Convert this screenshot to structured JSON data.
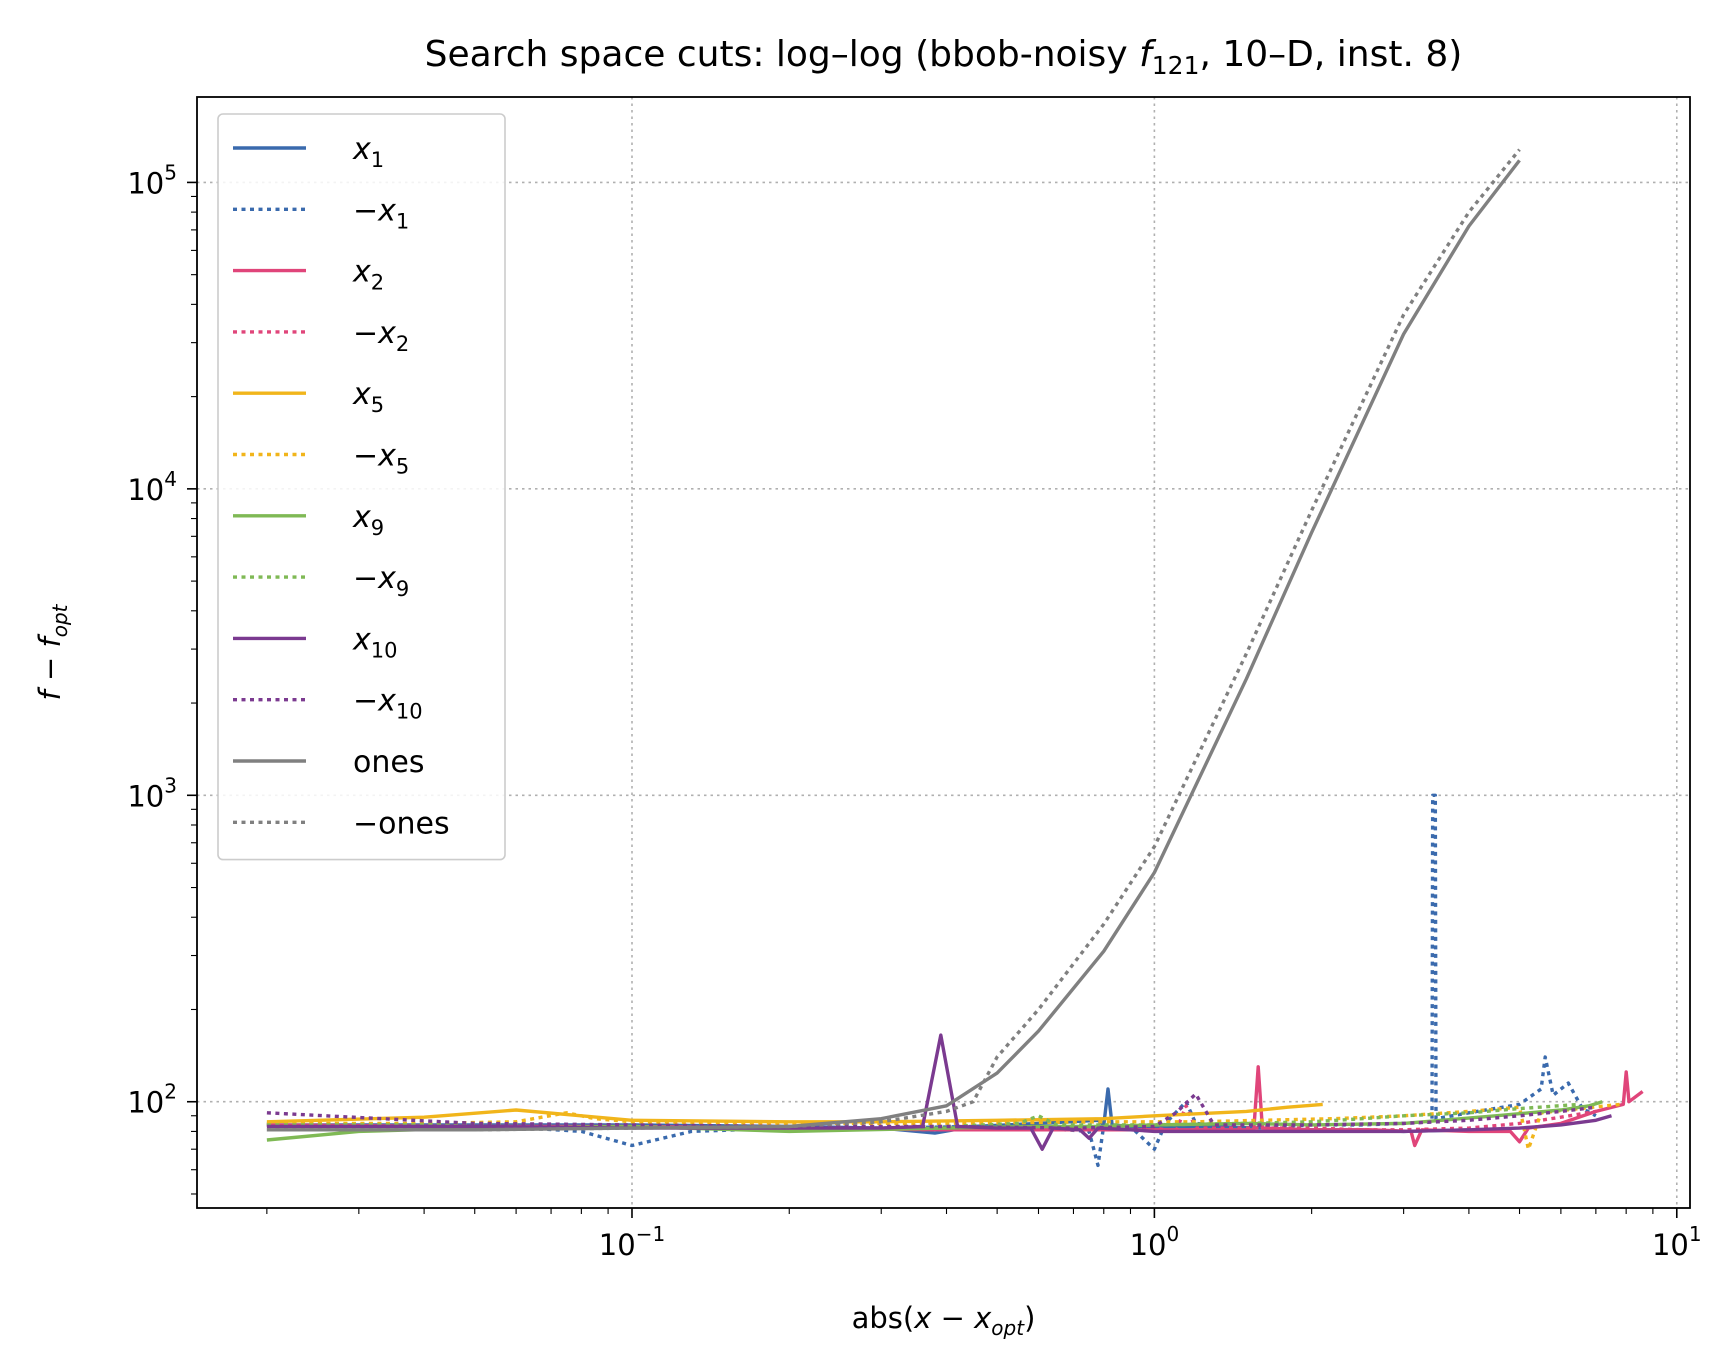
{
  "chart_data": {
    "type": "line",
    "title_parts": [
      "Search space cuts: log–log (bbob-noisy ",
      "f",
      "121",
      ", 10–D, inst. 8)"
    ],
    "xlabel_parts": [
      "abs(",
      "x",
      " − ",
      "x",
      "opt",
      ")"
    ],
    "ylabel_parts": [
      "f",
      " − ",
      "f",
      "opt"
    ],
    "xscale": "log",
    "yscale": "log",
    "xlim": [
      0.0147,
      10.6
    ],
    "ylim": [
      45,
      190000
    ],
    "grid": true,
    "legend_position": "upper-left",
    "x_ticks": [
      {
        "value": 0.1,
        "base": "10",
        "exp": "−1"
      },
      {
        "value": 1,
        "base": "10",
        "exp": "0"
      },
      {
        "value": 10,
        "base": "10",
        "exp": "1"
      }
    ],
    "y_ticks": [
      {
        "value": 100,
        "base": "10",
        "exp": "2"
      },
      {
        "value": 1000,
        "base": "10",
        "exp": "3"
      },
      {
        "value": 10000,
        "base": "10",
        "exp": "4"
      },
      {
        "value": 100000,
        "base": "10",
        "exp": "5"
      }
    ],
    "series": [
      {
        "id": "x1",
        "label_parts": [
          "",
          "x",
          "1"
        ],
        "color": "#3a6aad",
        "dash": "solid",
        "points": [
          [
            0.02,
            84
          ],
          [
            0.05,
            84
          ],
          [
            0.1,
            84
          ],
          [
            0.2,
            83
          ],
          [
            0.3,
            82
          ],
          [
            0.38,
            79
          ],
          [
            0.45,
            83
          ],
          [
            0.6,
            85
          ],
          [
            0.78,
            87
          ],
          [
            0.8,
            84
          ],
          [
            0.815,
            110
          ],
          [
            0.83,
            84
          ],
          [
            0.9,
            83
          ],
          [
            1.0,
            82
          ],
          [
            1.2,
            83
          ],
          [
            1.6,
            82
          ],
          [
            2.0,
            81
          ],
          [
            2.5,
            81
          ],
          [
            3.0,
            80
          ],
          [
            4.0,
            81
          ]
        ]
      },
      {
        "id": "mx1",
        "label_parts": [
          "−",
          "x",
          "1"
        ],
        "color": "#3a6aad",
        "dash": "dotted",
        "points": [
          [
            0.02,
            85
          ],
          [
            0.05,
            84
          ],
          [
            0.08,
            80
          ],
          [
            0.1,
            72
          ],
          [
            0.13,
            80
          ],
          [
            0.2,
            82
          ],
          [
            0.3,
            82
          ],
          [
            0.45,
            83
          ],
          [
            0.6,
            82
          ],
          [
            0.75,
            80
          ],
          [
            0.78,
            62
          ],
          [
            0.8,
            84
          ],
          [
            0.9,
            83
          ],
          [
            1.0,
            70
          ],
          [
            1.05,
            85
          ],
          [
            1.15,
            100
          ],
          [
            1.2,
            85
          ],
          [
            1.5,
            82
          ],
          [
            2.0,
            84
          ],
          [
            2.5,
            84
          ],
          [
            3.0,
            85
          ],
          [
            3.4,
            86
          ],
          [
            3.41,
            1000
          ],
          [
            3.45,
            1000
          ],
          [
            3.46,
            88
          ],
          [
            4.0,
            92
          ],
          [
            5.0,
            98
          ],
          [
            5.5,
            110
          ],
          [
            5.6,
            140
          ],
          [
            5.8,
            105
          ],
          [
            6.2,
            115
          ],
          [
            6.6,
            95
          ],
          [
            7.0,
            90
          ]
        ]
      },
      {
        "id": "x2",
        "label_parts": [
          "",
          "x",
          "2"
        ],
        "color": "#e0457a",
        "dash": "solid",
        "points": [
          [
            0.02,
            84
          ],
          [
            0.05,
            83
          ],
          [
            0.1,
            83
          ],
          [
            0.2,
            82
          ],
          [
            0.4,
            81
          ],
          [
            0.8,
            81
          ],
          [
            1.2,
            81
          ],
          [
            1.55,
            81
          ],
          [
            1.58,
            130
          ],
          [
            1.61,
            82
          ],
          [
            2.0,
            81
          ],
          [
            2.6,
            81
          ],
          [
            3.1,
            80
          ],
          [
            3.15,
            72
          ],
          [
            3.25,
            81
          ],
          [
            4.0,
            80
          ],
          [
            4.8,
            80
          ],
          [
            5.0,
            74
          ],
          [
            5.2,
            82
          ],
          [
            6.0,
            85
          ],
          [
            7.0,
            93
          ],
          [
            7.9,
            98
          ],
          [
            8.0,
            125
          ],
          [
            8.1,
            100
          ],
          [
            8.6,
            108
          ]
        ]
      },
      {
        "id": "mx2",
        "label_parts": [
          "−",
          "x",
          "2"
        ],
        "color": "#e0457a",
        "dash": "dotted",
        "points": [
          [
            0.02,
            84
          ],
          [
            0.05,
            83
          ],
          [
            0.1,
            83
          ],
          [
            0.2,
            82
          ],
          [
            0.4,
            81
          ],
          [
            0.8,
            82
          ],
          [
            1.0,
            82
          ],
          [
            1.1,
            80
          ],
          [
            1.15,
            97
          ],
          [
            1.2,
            82
          ],
          [
            1.6,
            82
          ],
          [
            2.0,
            82
          ],
          [
            2.5,
            81
          ],
          [
            3.0,
            81
          ],
          [
            4.0,
            82
          ],
          [
            5.0,
            85
          ],
          [
            6.0,
            89
          ],
          [
            7.0,
            93
          ]
        ]
      },
      {
        "id": "x5",
        "label_parts": [
          "",
          "x",
          "5"
        ],
        "color": "#f1b51b",
        "dash": "solid",
        "points": [
          [
            0.02,
            86
          ],
          [
            0.04,
            89
          ],
          [
            0.06,
            94
          ],
          [
            0.08,
            90
          ],
          [
            0.1,
            87
          ],
          [
            0.2,
            86
          ],
          [
            0.3,
            86
          ],
          [
            0.5,
            87
          ],
          [
            0.8,
            88
          ],
          [
            1.0,
            90
          ],
          [
            1.5,
            93
          ],
          [
            1.8,
            96
          ],
          [
            2.1,
            98
          ]
        ]
      },
      {
        "id": "mx5",
        "label_parts": [
          "−",
          "x",
          "5"
        ],
        "color": "#f1b51b",
        "dash": "dotted",
        "points": [
          [
            0.02,
            85
          ],
          [
            0.04,
            85
          ],
          [
            0.06,
            86
          ],
          [
            0.075,
            92
          ],
          [
            0.085,
            88
          ],
          [
            0.1,
            86
          ],
          [
            0.2,
            85
          ],
          [
            0.4,
            85
          ],
          [
            0.8,
            86
          ],
          [
            1.2,
            86
          ],
          [
            1.6,
            87
          ],
          [
            2.2,
            88
          ],
          [
            3.0,
            90
          ],
          [
            4.0,
            93
          ],
          [
            5.0,
            96
          ],
          [
            5.2,
            70
          ],
          [
            5.5,
            92
          ],
          [
            6.5,
            95
          ],
          [
            7.8,
            98
          ]
        ]
      },
      {
        "id": "x9",
        "label_parts": [
          "",
          "x",
          "9"
        ],
        "color": "#7fb955",
        "dash": "solid",
        "points": [
          [
            0.02,
            75
          ],
          [
            0.03,
            80
          ],
          [
            0.05,
            82
          ],
          [
            0.1,
            83
          ],
          [
            0.2,
            80
          ],
          [
            0.4,
            82
          ],
          [
            0.6,
            83
          ],
          [
            0.8,
            83
          ],
          [
            1.0,
            84
          ],
          [
            1.5,
            85
          ],
          [
            2.0,
            84
          ],
          [
            3.0,
            85
          ],
          [
            4.5,
            90
          ],
          [
            6.0,
            94
          ],
          [
            6.8,
            97
          ],
          [
            7.2,
            100
          ]
        ]
      },
      {
        "id": "mx9",
        "label_parts": [
          "−",
          "x",
          "9"
        ],
        "color": "#7fb955",
        "dash": "dotted",
        "points": [
          [
            0.02,
            84
          ],
          [
            0.05,
            84
          ],
          [
            0.1,
            83
          ],
          [
            0.2,
            82
          ],
          [
            0.4,
            83
          ],
          [
            0.55,
            85
          ],
          [
            0.6,
            90
          ],
          [
            0.65,
            84
          ],
          [
            0.8,
            84
          ],
          [
            1.0,
            84
          ],
          [
            1.5,
            85
          ],
          [
            2.0,
            86
          ],
          [
            2.5,
            88
          ],
          [
            3.0,
            90
          ],
          [
            4.0,
            92
          ],
          [
            5.0,
            95
          ],
          [
            6.5,
            98
          ]
        ]
      },
      {
        "id": "x10",
        "label_parts": [
          "",
          "x",
          "10"
        ],
        "color": "#7b3a90",
        "dash": "solid",
        "points": [
          [
            0.02,
            83
          ],
          [
            0.05,
            83
          ],
          [
            0.1,
            82
          ],
          [
            0.2,
            82
          ],
          [
            0.3,
            82
          ],
          [
            0.36,
            83
          ],
          [
            0.39,
            165
          ],
          [
            0.42,
            83
          ],
          [
            0.5,
            82
          ],
          [
            0.58,
            82
          ],
          [
            0.61,
            70
          ],
          [
            0.64,
            82
          ],
          [
            0.72,
            81
          ],
          [
            0.75,
            76
          ],
          [
            0.78,
            82
          ],
          [
            0.9,
            81
          ],
          [
            1.0,
            80
          ],
          [
            1.5,
            80
          ],
          [
            2.0,
            80
          ],
          [
            3.0,
            80
          ],
          [
            4.0,
            81
          ],
          [
            5.0,
            82
          ],
          [
            6.0,
            84
          ],
          [
            7.0,
            87
          ],
          [
            7.5,
            90
          ]
        ]
      },
      {
        "id": "mx10",
        "label_parts": [
          "−",
          "x",
          "10"
        ],
        "color": "#7b3a90",
        "dash": "dotted",
        "points": [
          [
            0.02,
            92
          ],
          [
            0.05,
            85
          ],
          [
            0.1,
            84
          ],
          [
            0.2,
            83
          ],
          [
            0.4,
            83
          ],
          [
            0.7,
            82
          ],
          [
            1.0,
            83
          ],
          [
            1.1,
            92
          ],
          [
            1.2,
            106
          ],
          [
            1.3,
            84
          ],
          [
            1.6,
            84
          ],
          [
            2.0,
            84
          ],
          [
            3.0,
            85
          ],
          [
            4.0,
            87
          ],
          [
            5.0,
            90
          ],
          [
            6.0,
            93
          ],
          [
            7.0,
            96
          ]
        ]
      },
      {
        "id": "ones",
        "label_parts": [
          "ones"
        ],
        "color": "#808080",
        "dash": "solid",
        "points": [
          [
            0.02,
            81
          ],
          [
            0.05,
            81
          ],
          [
            0.1,
            82
          ],
          [
            0.2,
            83
          ],
          [
            0.3,
            88
          ],
          [
            0.4,
            97
          ],
          [
            0.5,
            124
          ],
          [
            0.6,
            170
          ],
          [
            0.8,
            310
          ],
          [
            1.0,
            560
          ],
          [
            1.5,
            2400
          ],
          [
            2.0,
            7200
          ],
          [
            3.0,
            32000
          ],
          [
            4.0,
            72000
          ],
          [
            5.0,
            118000
          ]
        ]
      },
      {
        "id": "mones",
        "label_parts": [
          "−ones"
        ],
        "color": "#808080",
        "dash": "dotted",
        "points": [
          [
            0.02,
            81
          ],
          [
            0.05,
            81
          ],
          [
            0.1,
            82
          ],
          [
            0.2,
            83
          ],
          [
            0.3,
            86
          ],
          [
            0.4,
            93
          ],
          [
            0.45,
            100
          ],
          [
            0.5,
            140
          ],
          [
            0.6,
            200
          ],
          [
            0.8,
            380
          ],
          [
            1.0,
            680
          ],
          [
            1.5,
            2900
          ],
          [
            2.0,
            8500
          ],
          [
            3.0,
            37000
          ],
          [
            4.0,
            80000
          ],
          [
            5.0,
            128000
          ]
        ]
      }
    ]
  }
}
